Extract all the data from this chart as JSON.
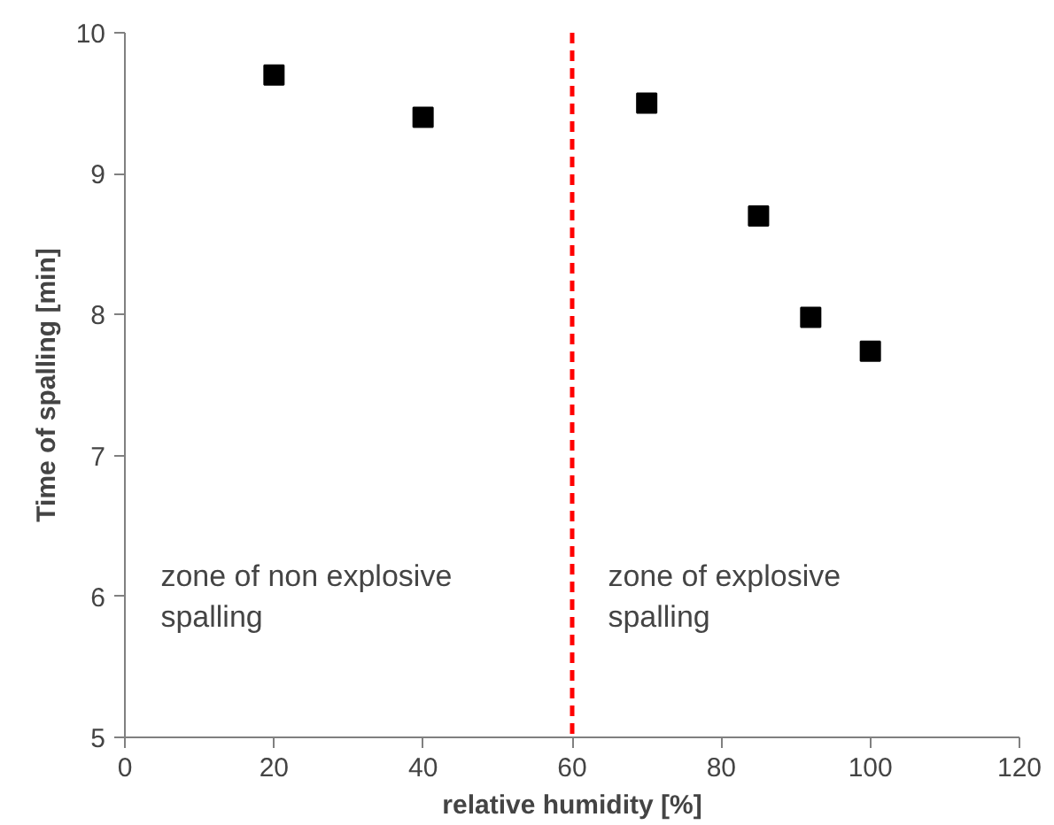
{
  "chart_data": {
    "type": "scatter",
    "xlabel": "relative humidity [%]",
    "ylabel": "Time of spalling [min]",
    "x": [
      20,
      40,
      70,
      85,
      92,
      100
    ],
    "series": [
      {
        "color": "#000000",
        "values": [
          9.7,
          9.4,
          9.5,
          8.7,
          7.98,
          7.74
        ]
      }
    ],
    "marker": "square",
    "xlim": [
      0,
      120
    ],
    "ylim": [
      5,
      10
    ],
    "xticks": [
      0,
      20,
      40,
      60,
      80,
      100,
      120
    ],
    "yticks": [
      5,
      6,
      7,
      8,
      9,
      10
    ],
    "grid": false,
    "ref_lines": [
      {
        "axis": "x",
        "value": 60,
        "color": "#ff0000",
        "line_style": "dashed"
      }
    ],
    "annotations": [
      "zone of non explosive\n spalling",
      "zone of explosive\nspalling"
    ]
  }
}
